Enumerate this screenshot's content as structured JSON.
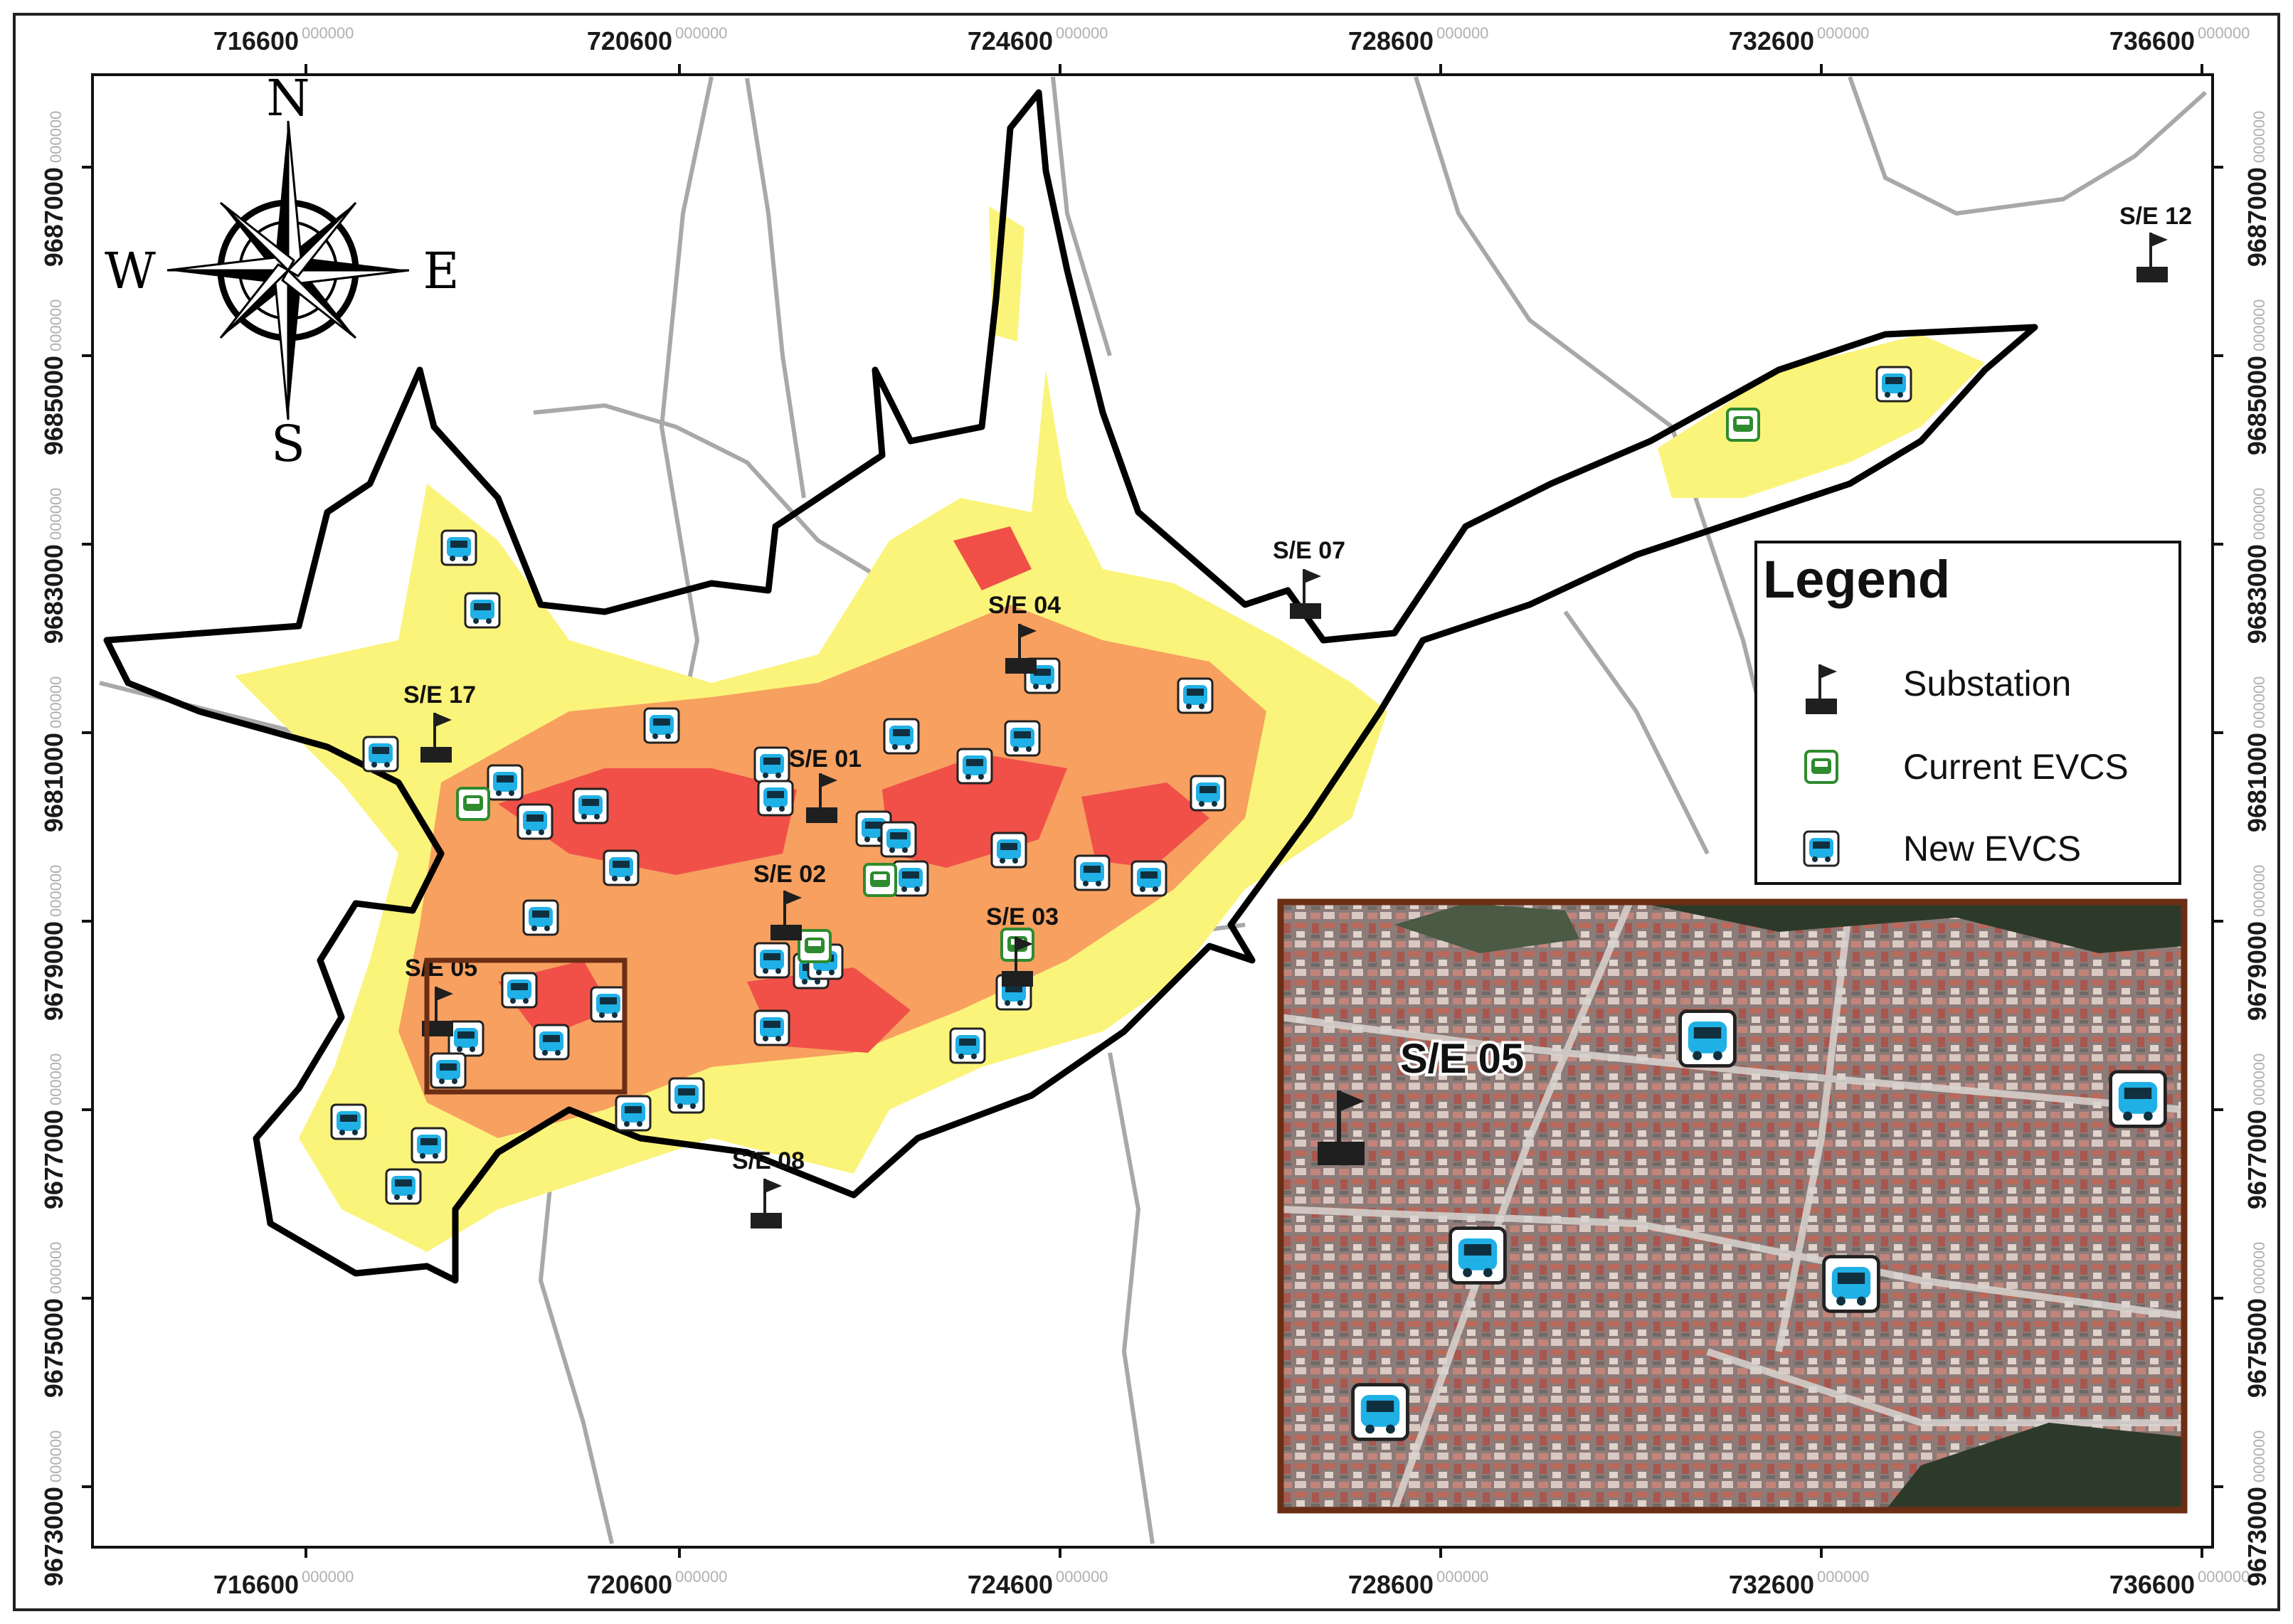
{
  "map": {
    "x_ticks": [
      {
        "main": "716600",
        "sub": "000000"
      },
      {
        "main": "720600",
        "sub": "000000"
      },
      {
        "main": "724600",
        "sub": "000000"
      },
      {
        "main": "728600",
        "sub": "000000"
      },
      {
        "main": "732600",
        "sub": "000000"
      },
      {
        "main": "736600",
        "sub": "000000"
      }
    ],
    "y_ticks": [
      {
        "main": "9687000",
        "sub": "000000"
      },
      {
        "main": "9685000",
        "sub": "000000"
      },
      {
        "main": "9683000",
        "sub": "000000"
      },
      {
        "main": "9681000",
        "sub": "000000"
      },
      {
        "main": "9679000",
        "sub": "000000"
      },
      {
        "main": "9677000",
        "sub": "000000"
      },
      {
        "main": "9675000",
        "sub": "000000"
      },
      {
        "main": "9673000",
        "sub": "000000"
      }
    ],
    "compass": {
      "north": "N",
      "south": "S",
      "east": "E",
      "west": "W"
    },
    "substations": [
      {
        "label": "S/E 01"
      },
      {
        "label": "S/E 02"
      },
      {
        "label": "S/E 03"
      },
      {
        "label": "S/E 04"
      },
      {
        "label": "S/E 05"
      },
      {
        "label": "S/E 07"
      },
      {
        "label": "S/E 08"
      },
      {
        "label": "S/E 12"
      },
      {
        "label": "S/E 17"
      }
    ],
    "legend": {
      "title": "Legend",
      "items": [
        {
          "label": "Substation",
          "icon": "flag-icon"
        },
        {
          "label": "Current EVCS",
          "icon": "current-evcs-icon",
          "color": "#2e8b2e"
        },
        {
          "label": "New EVCS",
          "icon": "new-evcs-icon",
          "color": "#1fb0e6"
        }
      ]
    },
    "inset": {
      "label": "S/E 05"
    },
    "colors": {
      "high": "#f05048",
      "medium": "#f7a060",
      "low": "#fbf47a",
      "boundary": "#000000",
      "roads": "#a8a8a8",
      "inset_frame": "#6b2e14"
    }
  }
}
